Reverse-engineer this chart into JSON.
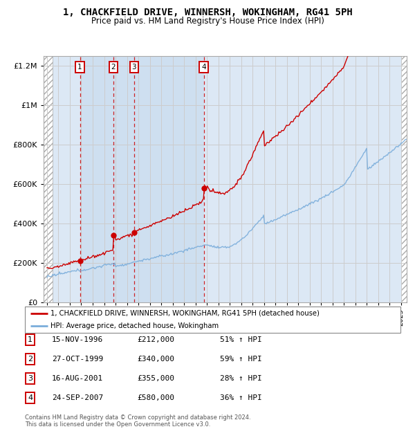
{
  "title": "1, CHACKFIELD DRIVE, WINNERSH, WOKINGHAM, RG41 5PH",
  "subtitle": "Price paid vs. HM Land Registry's House Price Index (HPI)",
  "transactions": [
    {
      "label": "1",
      "date": 1996.88,
      "price": 212000,
      "date_str": "15-NOV-1996",
      "pct": "51% ↑ HPI"
    },
    {
      "label": "2",
      "date": 1999.82,
      "price": 340000,
      "date_str": "27-OCT-1999",
      "pct": "59% ↑ HPI"
    },
    {
      "label": "3",
      "date": 2001.62,
      "price": 355000,
      "date_str": "16-AUG-2001",
      "pct": "28% ↑ HPI"
    },
    {
      "label": "4",
      "date": 2007.73,
      "price": 580000,
      "date_str": "24-SEP-2007",
      "pct": "36% ↑ HPI"
    }
  ],
  "price_line_color": "#cc0000",
  "hpi_line_color": "#7aaddb",
  "grid_color": "#cccccc",
  "background_chart": "#dce8f5",
  "hatch_bg": "#f0f0f0",
  "ylim": [
    0,
    1250000
  ],
  "xlim_start": 1993.7,
  "xlim_end": 2025.5,
  "hatch_right_start": 2025.0,
  "hatch_left_end": 1994.5,
  "shade_start": 1996.88,
  "shade_end": 2007.73,
  "legend_label_price": "1, CHACKFIELD DRIVE, WINNERSH, WOKINGHAM, RG41 5PH (detached house)",
  "legend_label_hpi": "HPI: Average price, detached house, Wokingham",
  "footer": "Contains HM Land Registry data © Crown copyright and database right 2024.\nThis data is licensed under the Open Government Licence v3.0.",
  "table_rows": [
    [
      "1",
      "15-NOV-1996",
      "£212,000",
      "51% ↑ HPI"
    ],
    [
      "2",
      "27-OCT-1999",
      "£340,000",
      "59% ↑ HPI"
    ],
    [
      "3",
      "16-AUG-2001",
      "£355,000",
      "28% ↑ HPI"
    ],
    [
      "4",
      "24-SEP-2007",
      "£580,000",
      "36% ↑ HPI"
    ]
  ]
}
